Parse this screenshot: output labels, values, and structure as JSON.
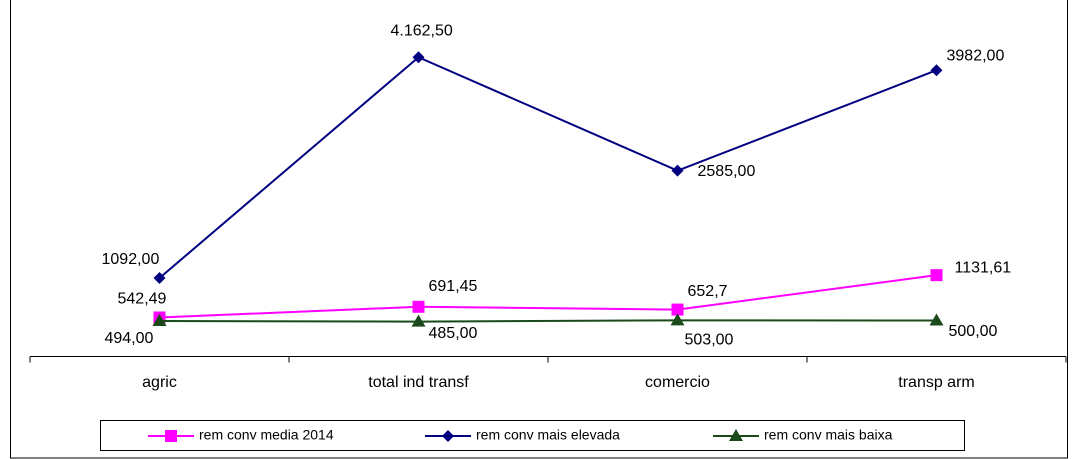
{
  "chart_data": {
    "type": "line",
    "categories": [
      "agric",
      "total ind transf",
      "comercio",
      "transp arm"
    ],
    "series": [
      {
        "name": "rem conv media 2014",
        "color": "#ff00ff",
        "marker": "square",
        "values": [
          542.49,
          691.45,
          652.7,
          1131.61
        ],
        "value_labels": [
          "542,49",
          "691,45",
          "652,7",
          "1131,61"
        ]
      },
      {
        "name": "rem conv mais elevada",
        "color": "#000080",
        "marker": "diamond",
        "values": [
          1092,
          4162.5,
          2585,
          3982
        ],
        "value_labels": [
          "1092,00",
          "4.162,50",
          "2585,00",
          "3982,00"
        ]
      },
      {
        "name": "rem conv mais baixa",
        "color": "#1a4a1a",
        "marker": "triangle",
        "values": [
          494,
          485,
          503,
          500
        ],
        "value_labels": [
          "494,00",
          "485,00",
          "503,00",
          "500,00"
        ]
      }
    ],
    "ylim": [
      0,
      4500
    ],
    "legend": "bottom"
  }
}
